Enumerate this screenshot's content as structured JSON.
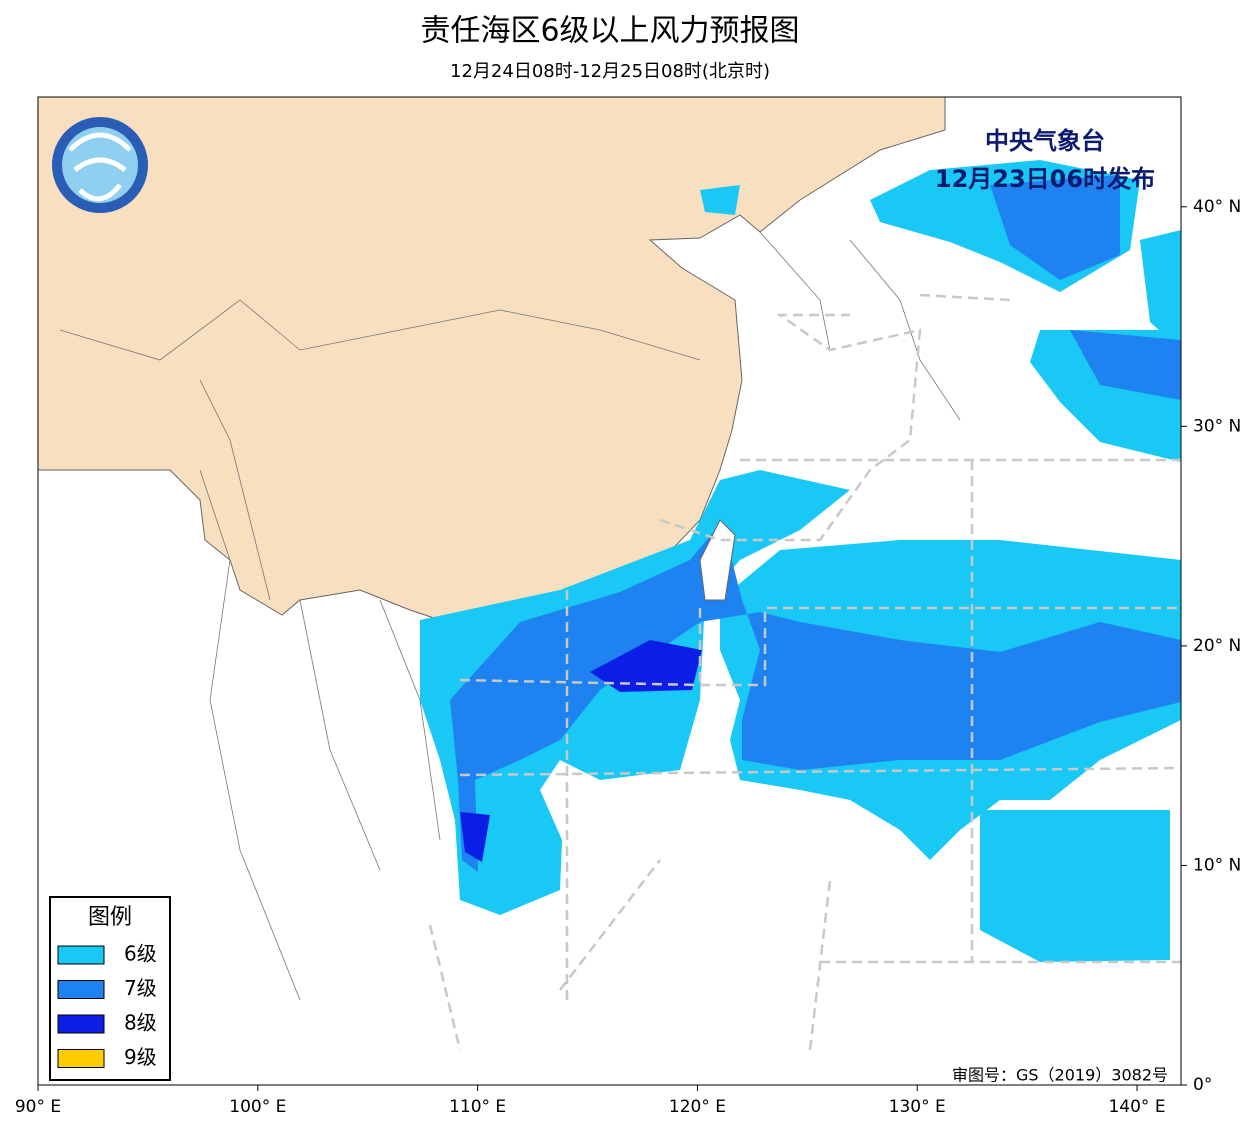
{
  "header": {
    "title": "责任海区6级以上风力预报图",
    "subtitle": "12月24日08时-12月25日08时(北京时)"
  },
  "map": {
    "xlim": [
      90,
      142
    ],
    "ylim": [
      0,
      45
    ],
    "xticks": [
      {
        "value": 90,
        "label": "90° E"
      },
      {
        "value": 100,
        "label": "100° E"
      },
      {
        "value": 110,
        "label": "110° E"
      },
      {
        "value": 120,
        "label": "120° E"
      },
      {
        "value": 130,
        "label": "130° E"
      },
      {
        "value": 140,
        "label": "140° E"
      }
    ],
    "yticks": [
      {
        "value": 0,
        "label": "0°"
      },
      {
        "value": 10,
        "label": "10° N"
      },
      {
        "value": 20,
        "label": "20° N"
      },
      {
        "value": 30,
        "label": "30° N"
      },
      {
        "value": 40,
        "label": "40° N"
      }
    ]
  },
  "legend": {
    "title": "图例",
    "items": [
      {
        "label": "6级",
        "color": "#19c8f5"
      },
      {
        "label": "7级",
        "color": "#1e82f0"
      },
      {
        "label": "8级",
        "color": "#0a1ee6"
      },
      {
        "label": "9级",
        "color": "#ffcc00"
      }
    ]
  },
  "issuer": {
    "name": "中央气象台",
    "time": "12月23日06时发布"
  },
  "approval": "审图号：GS（2019）3082号"
}
